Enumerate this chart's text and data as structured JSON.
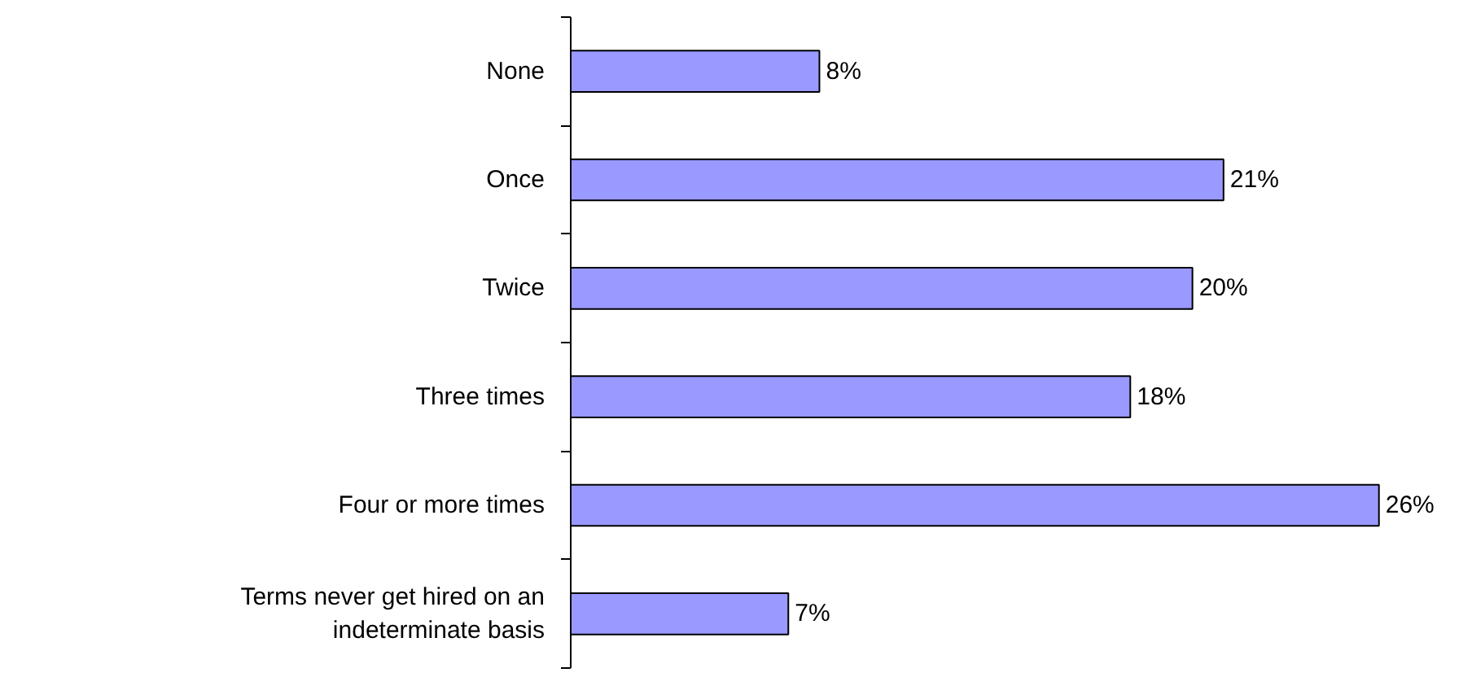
{
  "chart_data": {
    "type": "bar",
    "orientation": "horizontal",
    "categories": [
      "None",
      "Once",
      "Twice",
      "Three times",
      "Four or more times",
      "Terms never get hired on an indeterminate basis"
    ],
    "values": [
      8,
      21,
      20,
      18,
      26,
      7
    ],
    "value_labels": [
      "8%",
      "21%",
      "20%",
      "18%",
      "26%",
      "7%"
    ],
    "color": "#9999ff",
    "grid": false
  }
}
